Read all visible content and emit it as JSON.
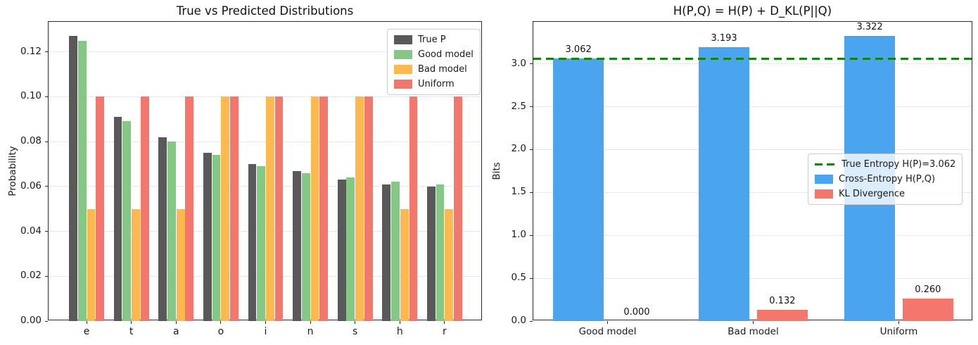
{
  "figure": {
    "background": "#ffffff"
  },
  "chart_data": [
    {
      "id": "true-vs-predicted",
      "type": "bar",
      "title": "True vs Predicted Distributions",
      "xlabel": "",
      "ylabel": "Probability",
      "categories": [
        "e",
        "t",
        "a",
        "o",
        "i",
        "n",
        "s",
        "h",
        "r"
      ],
      "series": [
        {
          "name": "True P",
          "color": "#595959",
          "values": [
            0.127,
            0.091,
            0.082,
            0.075,
            0.07,
            0.067,
            0.063,
            0.061,
            0.06
          ]
        },
        {
          "name": "Good model",
          "color": "#85c785",
          "values": [
            0.125,
            0.089,
            0.08,
            0.074,
            0.069,
            0.066,
            0.064,
            0.062,
            0.061
          ]
        },
        {
          "name": "Bad model",
          "color": "#fdb94d",
          "values": [
            0.05,
            0.05,
            0.05,
            0.1,
            0.1,
            0.1,
            0.1,
            0.05,
            0.05
          ]
        },
        {
          "name": "Uniform",
          "color": "#f4776e",
          "values": [
            0.1,
            0.1,
            0.1,
            0.1,
            0.1,
            0.1,
            0.1,
            0.1,
            0.1
          ]
        }
      ],
      "ylim": [
        0,
        0.1334
      ],
      "yticks": [
        0,
        0.02,
        0.04,
        0.06,
        0.08,
        0.1,
        0.12
      ],
      "ytick_labels": [
        "0.00",
        "0.02",
        "0.04",
        "0.06",
        "0.08",
        "0.10",
        "0.12"
      ],
      "grid": "horizontal",
      "legend_position": "upper right"
    },
    {
      "id": "cross-entropy-decomposition",
      "type": "bar",
      "title": "H(P,Q) = H(P) + D_KL(P||Q)",
      "xlabel": "",
      "ylabel": "Bits",
      "categories": [
        "Good model",
        "Bad model",
        "Uniform"
      ],
      "series": [
        {
          "name": "Cross-Entropy H(P,Q)",
          "color": "#4aa5ee",
          "values": [
            3.062,
            3.193,
            3.322
          ],
          "labels": [
            "3.062",
            "3.193",
            "3.322"
          ]
        },
        {
          "name": "KL Divergence",
          "color": "#f4776e",
          "values": [
            0.0,
            0.132,
            0.26
          ],
          "labels": [
            "0.000",
            "0.132",
            "0.260"
          ]
        }
      ],
      "hline": {
        "value": 3.062,
        "color": "#128212",
        "style": "dashed",
        "label": "True Entropy H(P)=3.062"
      },
      "ylim": [
        0,
        3.49
      ],
      "yticks": [
        0,
        0.5,
        1.0,
        1.5,
        2.0,
        2.5,
        3.0
      ],
      "ytick_labels": [
        "0.0",
        "0.5",
        "1.0",
        "1.5",
        "2.0",
        "2.5",
        "3.0"
      ],
      "grid": "horizontal",
      "legend_position": "center right"
    }
  ]
}
